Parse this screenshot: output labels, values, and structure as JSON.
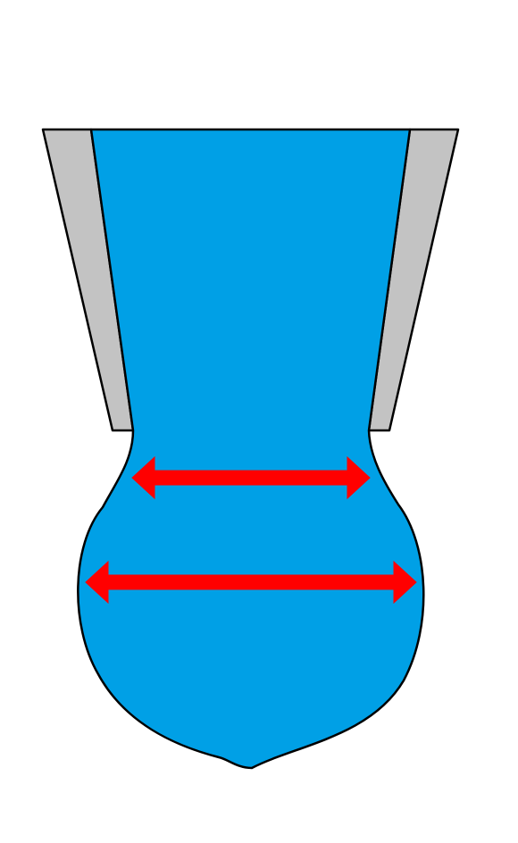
{
  "diagram": {
    "colors": {
      "background": "#ffffff",
      "wall": "#c3c3c3",
      "fluid": "#00a0e6",
      "arrow": "#ff0000",
      "outline": "#000000"
    },
    "arrows": [
      {
        "name": "upper-expansion-arrow",
        "direction": "bidirectional-horizontal"
      },
      {
        "name": "lower-expansion-arrow",
        "direction": "bidirectional-horizontal"
      }
    ]
  }
}
